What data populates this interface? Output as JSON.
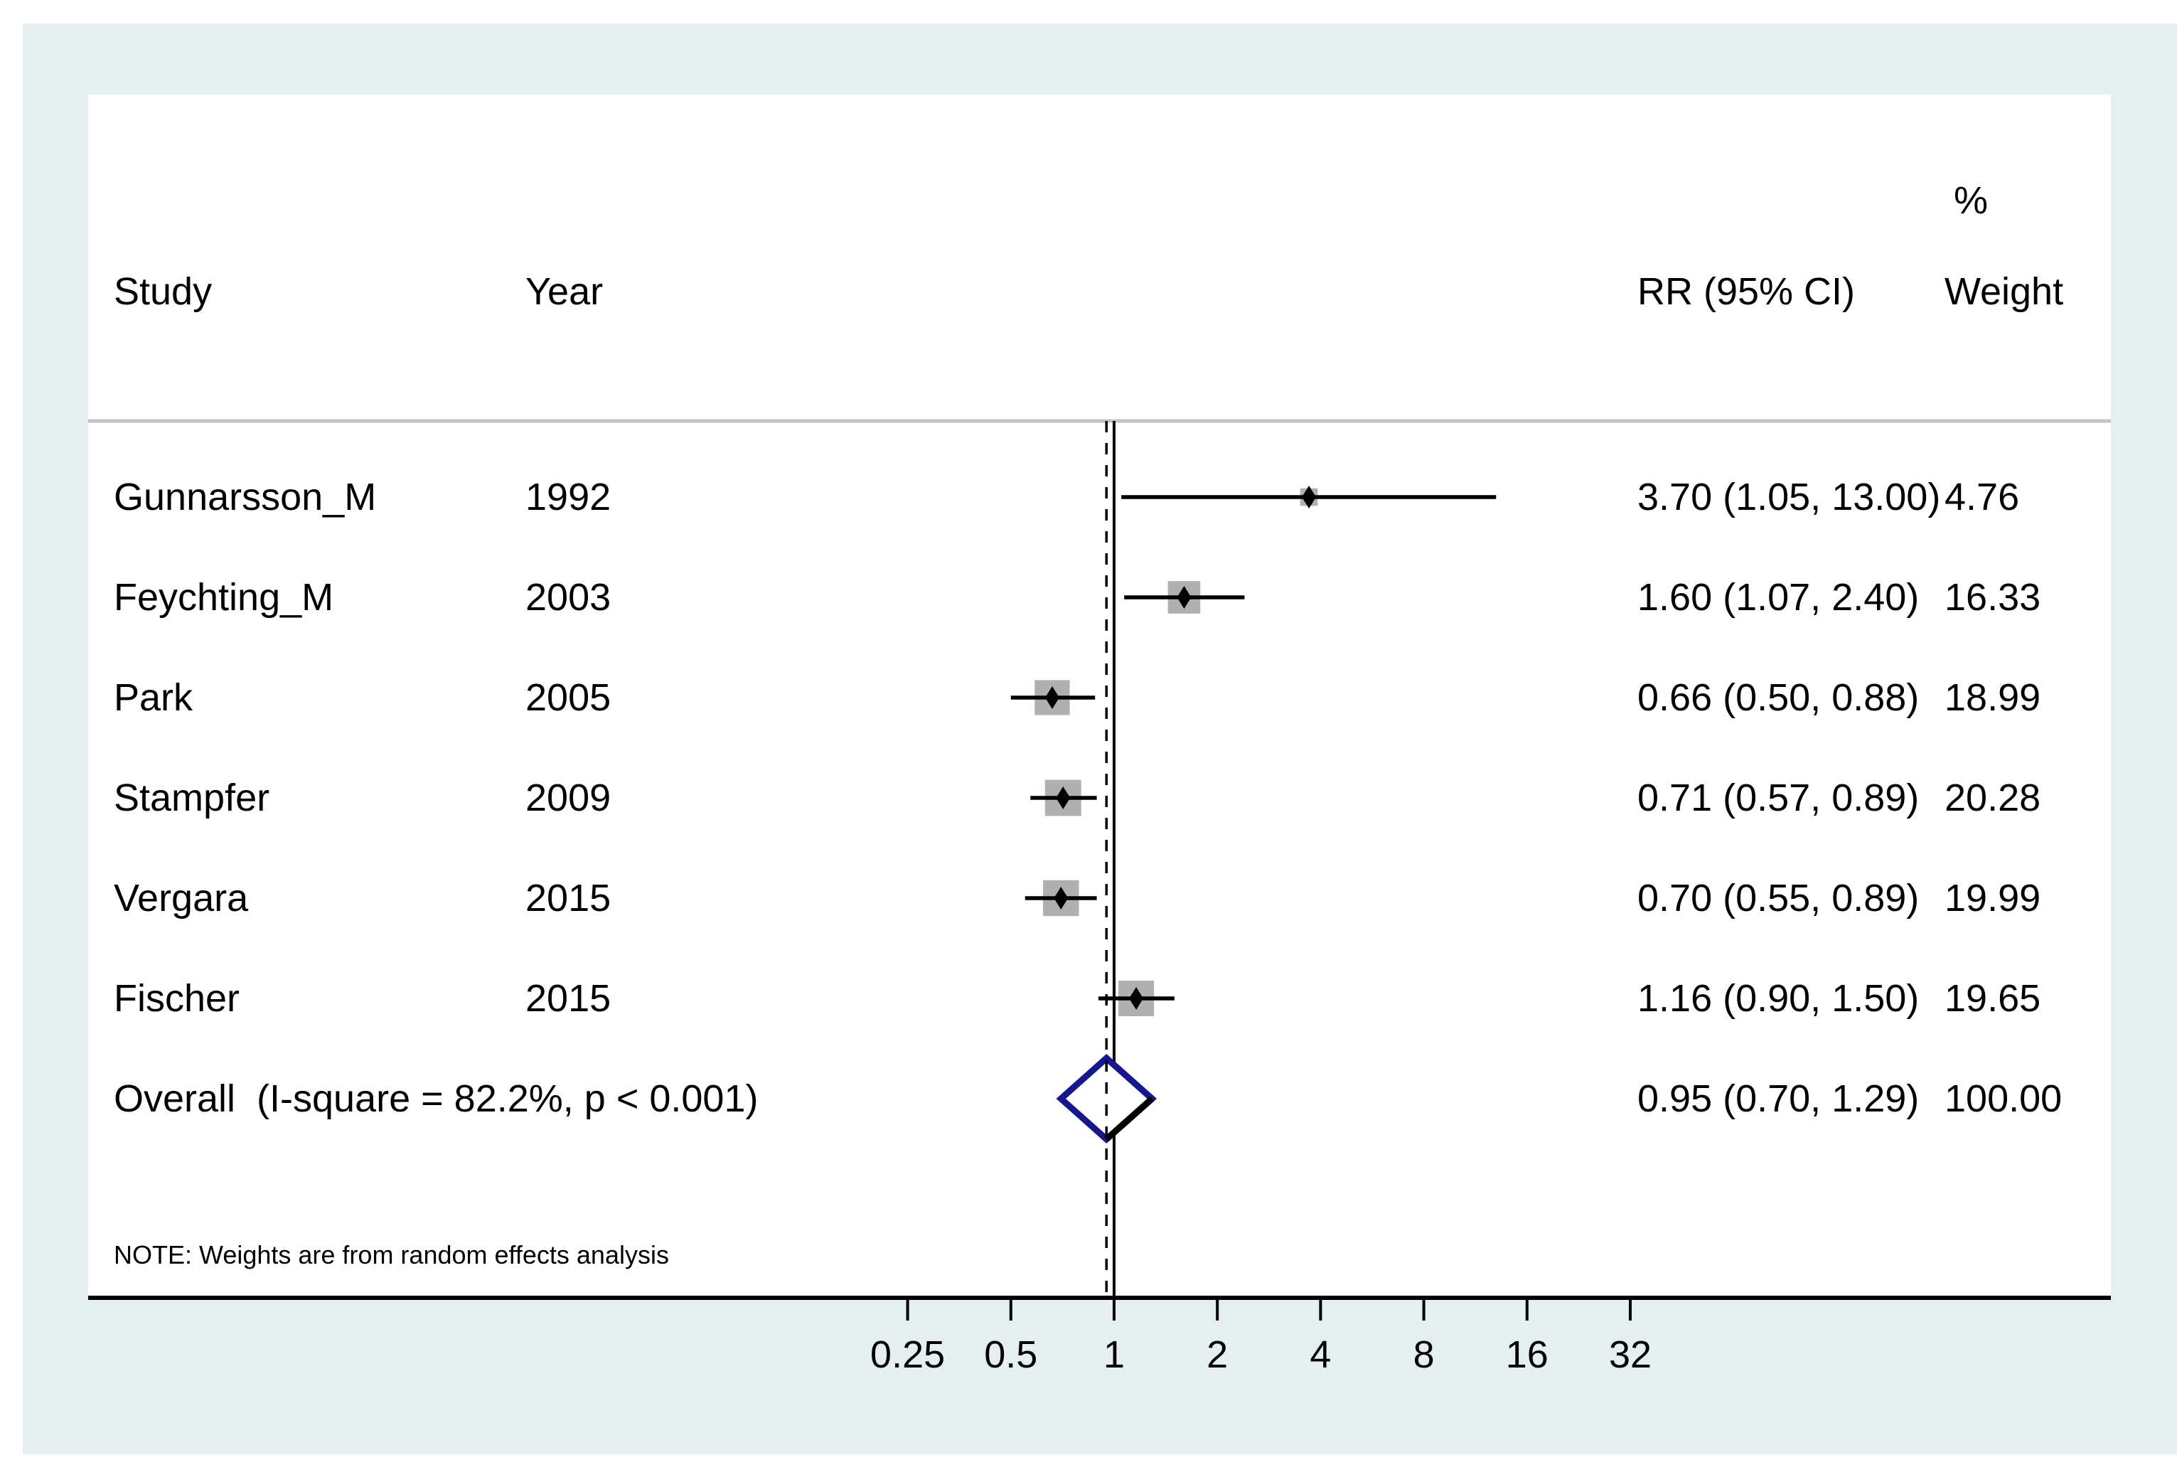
{
  "colors": {
    "background": "#e5eff0",
    "panel": "#ffffff",
    "box_gray": "#b0b0b0",
    "diamond_navy": "#16168e",
    "separator_gray": "#c5c5c5",
    "line_black": "#000000"
  },
  "chart_data": {
    "type": "forest",
    "columns": {
      "study": "Study",
      "year": "Year",
      "rr": "RR (95% CI)",
      "percent": "%",
      "weight": "Weight"
    },
    "x_axis": {
      "scale": "log2",
      "ticks": [
        0.25,
        0.5,
        1,
        2,
        4,
        8,
        16,
        32
      ],
      "tick_labels": [
        "0.25",
        "0.5",
        "1",
        "2",
        "4",
        "8",
        "16",
        "32"
      ],
      "null_line": 1,
      "overall_dashed_line": 0.95
    },
    "studies": [
      {
        "study": "Gunnarsson_M",
        "year": "1992",
        "rr": 3.7,
        "ci_low": 1.05,
        "ci_high": 13.0,
        "rr_label": "3.70 (1.05, 13.00)",
        "weight_label": "4.76",
        "weight": 4.76
      },
      {
        "study": "Feychting_M",
        "year": "2003",
        "rr": 1.6,
        "ci_low": 1.07,
        "ci_high": 2.4,
        "rr_label": "1.60 (1.07, 2.40)",
        "weight_label": "16.33",
        "weight": 16.33
      },
      {
        "study": "Park",
        "year": "2005",
        "rr": 0.66,
        "ci_low": 0.5,
        "ci_high": 0.88,
        "rr_label": "0.66 (0.50, 0.88)",
        "weight_label": "18.99",
        "weight": 18.99
      },
      {
        "study": "Stampfer",
        "year": "2009",
        "rr": 0.71,
        "ci_low": 0.57,
        "ci_high": 0.89,
        "rr_label": "0.71 (0.57, 0.89)",
        "weight_label": "20.28",
        "weight": 20.28
      },
      {
        "study": "Vergara",
        "year": "2015",
        "rr": 0.7,
        "ci_low": 0.55,
        "ci_high": 0.89,
        "rr_label": "0.70 (0.55, 0.89)",
        "weight_label": "19.99",
        "weight": 19.99
      },
      {
        "study": "Fischer",
        "year": "2015",
        "rr": 1.16,
        "ci_low": 0.9,
        "ci_high": 1.5,
        "rr_label": "1.16 (0.90, 1.50)",
        "weight_label": "19.65",
        "weight": 19.65
      }
    ],
    "overall": {
      "label": "Overall  (I-square = 82.2%, p < 0.001)",
      "rr": 0.95,
      "ci_low": 0.7,
      "ci_high": 1.29,
      "rr_label": "0.95 (0.70, 1.29)",
      "weight_label": "100.00"
    },
    "note": "NOTE: Weights are from random effects analysis"
  }
}
